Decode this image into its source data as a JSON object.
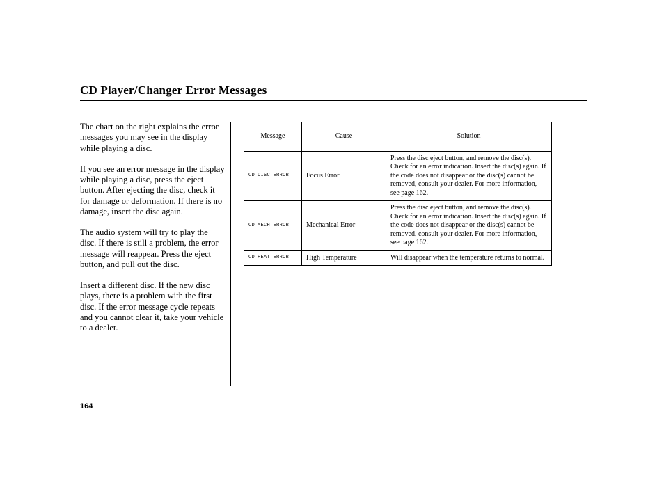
{
  "title": "CD Player/Changer Error Messages",
  "pageNumber": "164",
  "body": {
    "p1": "The chart on the right explains the error messages you may see in the display while playing a disc.",
    "p2": "If you see an error message in the display while playing a disc, press the eject button. After ejecting the disc, check it for damage or deformation. If there is no damage, insert the disc again.",
    "p3": "The audio system will try to play the disc. If there is still a problem, the error message will reappear. Press the eject button, and pull out the disc.",
    "p4": "Insert a different disc. If the new disc plays, there is a problem with the first disc. If the error message cycle repeats and you cannot clear it, take your vehicle to a dealer."
  },
  "table": {
    "headers": {
      "message": "Message",
      "cause": "Cause",
      "solution": "Solution"
    },
    "rows": [
      {
        "msgPrefix": "CD",
        "displayCode": "DISC ERROR",
        "cause": "Focus Error",
        "solution": "Press the disc eject button, and remove the disc(s). Check for an error indication. Insert the disc(s) again. If the code does not disappear or the disc(s) cannot be removed, consult your dealer. For more information, see page 162."
      },
      {
        "msgPrefix": "CD",
        "displayCode": "MECH ERROR",
        "cause": "Mechanical Error",
        "solution": "Press the disc eject button, and remove the disc(s). Check for an error indication. Insert the disc(s) again. If the code does not disappear or the disc(s) cannot be removed, consult your dealer. For more information, see page 162."
      },
      {
        "msgPrefix": "CD",
        "displayCode": "HEAT ERROR",
        "cause": "High Temperature",
        "solution": "Will disappear when the temperature returns to normal."
      }
    ]
  }
}
